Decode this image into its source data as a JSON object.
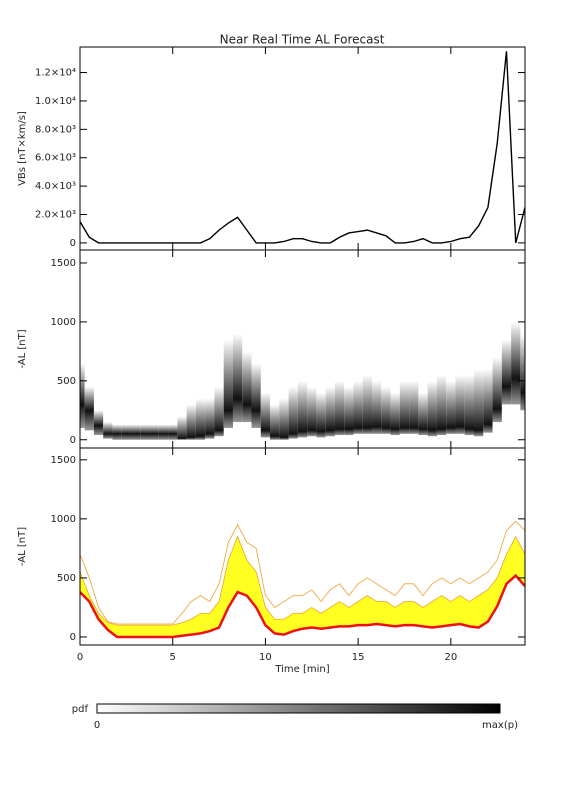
{
  "chart_data": [
    {
      "type": "line",
      "title": "Near Real Time AL Forecast",
      "ylabel": "VBs [nT×km/s]",
      "color": "#000000",
      "x": [
        0,
        0.5,
        1,
        1.5,
        2,
        2.5,
        3,
        3.5,
        4,
        4.5,
        5,
        5.5,
        6,
        6.5,
        7,
        7.5,
        8,
        8.5,
        9,
        9.5,
        10,
        10.5,
        11,
        11.5,
        12,
        12.5,
        13,
        13.5,
        14,
        14.5,
        15,
        15.5,
        16,
        16.5,
        17,
        17.5,
        18,
        18.5,
        19,
        19.5,
        20,
        20.5,
        21,
        21.5,
        22,
        22.5,
        23,
        23.5,
        24
      ],
      "values": [
        1500,
        400,
        0,
        0,
        0,
        0,
        0,
        0,
        0,
        0,
        0,
        0,
        0,
        0,
        300,
        900,
        1400,
        1800,
        900,
        0,
        0,
        0,
        100,
        300,
        300,
        100,
        0,
        0,
        400,
        700,
        800,
        900,
        700,
        500,
        0,
        0,
        100,
        300,
        0,
        0,
        100,
        300,
        400,
        1200,
        2500,
        7000,
        13500,
        0,
        2500
      ],
      "xlim": [
        0,
        24
      ],
      "ylim": [
        -500,
        13800
      ],
      "yticks": [
        0,
        {
          "value": 2000,
          "label": "2.0×10³"
        },
        {
          "value": 4000,
          "label": "4.0×10³"
        },
        {
          "value": 6000,
          "label": "6.0×10³"
        },
        {
          "value": 8000,
          "label": "8.0×10³"
        },
        {
          "value": 10000,
          "label": "1.0×10⁴"
        },
        {
          "value": 12000,
          "label": "1.2×10⁴"
        }
      ]
    },
    {
      "type": "heatmap",
      "ylabel": "-AL [nT]",
      "x": [
        0,
        0.5,
        1,
        1.5,
        2,
        2.5,
        3,
        3.5,
        4,
        4.5,
        5,
        5.5,
        6,
        6.5,
        7,
        7.5,
        8,
        8.5,
        9,
        9.5,
        10,
        10.5,
        11,
        11.5,
        12,
        12.5,
        13,
        13.5,
        14,
        14.5,
        15,
        15.5,
        16,
        16.5,
        17,
        17.5,
        18,
        18.5,
        19,
        19.5,
        20,
        20.5,
        21,
        21.5,
        22,
        22.5,
        23,
        23.5,
        24
      ],
      "low": [
        100,
        80,
        40,
        10,
        0,
        0,
        0,
        0,
        0,
        0,
        0,
        0,
        0,
        0,
        10,
        30,
        100,
        150,
        150,
        100,
        20,
        0,
        0,
        10,
        20,
        30,
        20,
        30,
        40,
        40,
        50,
        50,
        50,
        50,
        40,
        50,
        50,
        40,
        30,
        40,
        50,
        50,
        40,
        30,
        60,
        150,
        300,
        300,
        250
      ],
      "peak": [
        300,
        250,
        120,
        50,
        50,
        50,
        50,
        50,
        50,
        50,
        50,
        10,
        20,
        30,
        50,
        80,
        250,
        350,
        300,
        250,
        80,
        30,
        20,
        50,
        70,
        80,
        70,
        80,
        90,
        90,
        100,
        100,
        110,
        100,
        90,
        100,
        100,
        90,
        80,
        90,
        100,
        110,
        90,
        80,
        130,
        260,
        450,
        520,
        400
      ],
      "high": [
        650,
        450,
        250,
        150,
        130,
        130,
        130,
        130,
        130,
        130,
        130,
        200,
        300,
        350,
        350,
        450,
        850,
        900,
        750,
        650,
        400,
        300,
        350,
        450,
        500,
        450,
        400,
        450,
        500,
        450,
        500,
        550,
        500,
        450,
        400,
        500,
        500,
        400,
        500,
        550,
        500,
        550,
        550,
        600,
        600,
        700,
        850,
        1000,
        900
      ],
      "xlim": [
        0,
        24
      ],
      "ylim": [
        -70,
        1610
      ],
      "yticks": [
        0,
        500,
        1000,
        1500
      ]
    },
    {
      "type": "area",
      "ylabel": "-AL [nT]",
      "xlabel": "Time [min]",
      "x": [
        0,
        0.5,
        1,
        1.5,
        2,
        2.5,
        3,
        3.5,
        4,
        4.5,
        5,
        5.5,
        6,
        6.5,
        7,
        7.5,
        8,
        8.5,
        9,
        9.5,
        10,
        10.5,
        11,
        11.5,
        12,
        12.5,
        13,
        13.5,
        14,
        14.5,
        15,
        15.5,
        16,
        16.5,
        17,
        17.5,
        18,
        18.5,
        19,
        19.5,
        20,
        20.5,
        21,
        21.5,
        22,
        22.5,
        23,
        23.5,
        24
      ],
      "median": {
        "color": "#ee1111",
        "values": [
          380,
          300,
          150,
          60,
          0,
          0,
          0,
          0,
          0,
          0,
          0,
          10,
          20,
          30,
          50,
          80,
          250,
          380,
          350,
          250,
          100,
          30,
          20,
          50,
          70,
          80,
          70,
          80,
          90,
          90,
          100,
          100,
          110,
          100,
          90,
          100,
          100,
          90,
          80,
          90,
          100,
          110,
          90,
          80,
          130,
          260,
          450,
          520,
          430
        ]
      },
      "upper": {
        "color": "#ffff22",
        "values": [
          550,
          350,
          200,
          120,
          100,
          100,
          100,
          100,
          100,
          100,
          100,
          120,
          150,
          200,
          200,
          300,
          650,
          850,
          650,
          550,
          250,
          150,
          150,
          200,
          200,
          250,
          200,
          250,
          300,
          250,
          300,
          350,
          300,
          300,
          250,
          300,
          300,
          250,
          300,
          350,
          300,
          350,
          300,
          350,
          400,
          500,
          700,
          850,
          700
        ]
      },
      "max": {
        "color": "#f0a030",
        "values": [
          700,
          500,
          250,
          130,
          110,
          110,
          110,
          110,
          110,
          110,
          110,
          200,
          300,
          350,
          300,
          450,
          800,
          950,
          800,
          750,
          350,
          250,
          300,
          350,
          350,
          400,
          300,
          400,
          450,
          350,
          450,
          500,
          450,
          400,
          350,
          450,
          450,
          350,
          450,
          500,
          450,
          500,
          450,
          500,
          550,
          650,
          900,
          980,
          900
        ]
      },
      "xlim": [
        0,
        24
      ],
      "ylim": [
        -68,
        1600
      ],
      "yticks": [
        0,
        500,
        1000,
        1500
      ],
      "xticks": [
        0,
        5,
        10,
        15,
        20
      ]
    }
  ],
  "colorbar": {
    "label": "pdf",
    "min_label": "0",
    "max_label": "max(p)"
  }
}
